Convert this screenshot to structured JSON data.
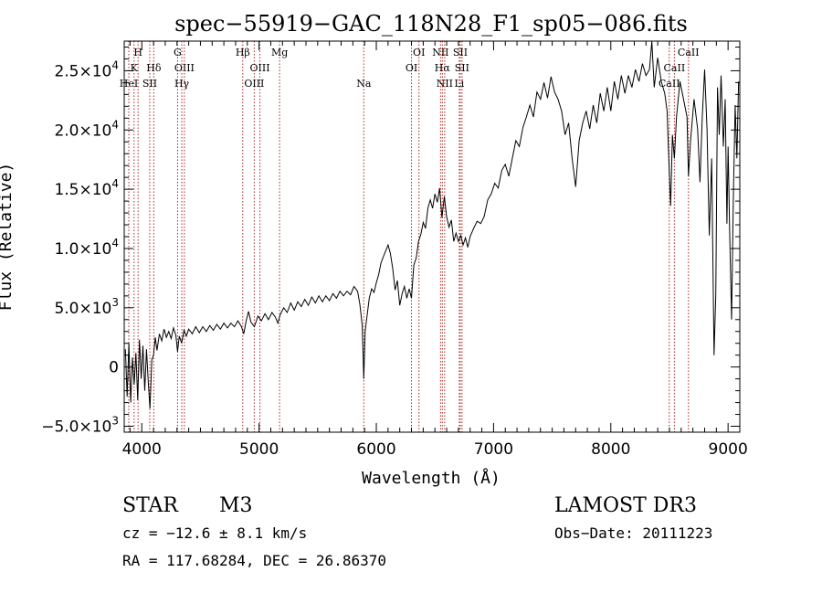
{
  "chart_data": {
    "type": "line",
    "title": "spec−55919−GAC_118N28_F1_sp05−086.fits",
    "xlabel": "Wavelength (Å)",
    "ylabel": "Flux (Relative)",
    "xlim": [
      3850,
      9100
    ],
    "ylim": [
      -5500,
      27500
    ],
    "x_ticks": [
      {
        "value": 4000,
        "label": "4000"
      },
      {
        "value": 5000,
        "label": "5000"
      },
      {
        "value": 6000,
        "label": "6000"
      },
      {
        "value": 7000,
        "label": "7000"
      },
      {
        "value": 8000,
        "label": "8000"
      },
      {
        "value": 9000,
        "label": "9000"
      }
    ],
    "y_ticks": [
      {
        "value": -5000,
        "mant": "−5.0×10",
        "exp": "3"
      },
      {
        "value": 0,
        "mant": "0",
        "exp": ""
      },
      {
        "value": 5000,
        "mant": "5.0×10",
        "exp": "3"
      },
      {
        "value": 10000,
        "mant": "1.0×10",
        "exp": "4"
      },
      {
        "value": 15000,
        "mant": "1.5×10",
        "exp": "4"
      },
      {
        "value": 20000,
        "mant": "2.0×10",
        "exp": "4"
      },
      {
        "value": 25000,
        "mant": "2.5×10",
        "exp": "4"
      }
    ],
    "line_color": "#000000",
    "marker_color": "#b22222",
    "spectral_lines": [
      {
        "label": "H",
        "wavelength": 3968,
        "row": 0
      },
      {
        "label": "K",
        "wavelength": 3934,
        "row": 1
      },
      {
        "label": "HeI",
        "wavelength": 3889,
        "row": 2
      },
      {
        "label": "Hδ",
        "wavelength": 4102,
        "row": 1
      },
      {
        "label": "SII",
        "wavelength": 4068,
        "row": 2
      },
      {
        "label": "G",
        "wavelength": 4305,
        "row": 0
      },
      {
        "label": "OIII",
        "wavelength": 4363,
        "row": 1
      },
      {
        "label": "Hγ",
        "wavelength": 4341,
        "row": 2
      },
      {
        "label": "Hβ",
        "wavelength": 4861,
        "row": 0
      },
      {
        "label": "OIII",
        "wavelength": 5007,
        "row": 1
      },
      {
        "label": "OIII",
        "wavelength": 4959,
        "row": 2
      },
      {
        "label": "Mg",
        "wavelength": 5175,
        "row": 0
      },
      {
        "label": "Na",
        "wavelength": 5893,
        "row": 2
      },
      {
        "label": "OI",
        "wavelength": 6364,
        "row": 0
      },
      {
        "label": "OI",
        "wavelength": 6300,
        "row": 1
      },
      {
        "label": "NII",
        "wavelength": 6548,
        "row": 0
      },
      {
        "label": "SII",
        "wavelength": 6716,
        "row": 0
      },
      {
        "label": "Hα",
        "wavelength": 6563,
        "row": 1
      },
      {
        "label": "SII",
        "wavelength": 6731,
        "row": 1
      },
      {
        "label": "NII",
        "wavelength": 6583,
        "row": 2
      },
      {
        "label": "Li",
        "wavelength": 6708,
        "row": 2
      },
      {
        "label": "CaII",
        "wavelength": 8662,
        "row": 0
      },
      {
        "label": "CaII",
        "wavelength": 8542,
        "row": 1
      },
      {
        "label": "CaII",
        "wavelength": 8498,
        "row": 2
      }
    ],
    "series": [
      {
        "name": "flux",
        "points": [
          [
            3860,
            1500
          ],
          [
            3875,
            -2500
          ],
          [
            3890,
            2000
          ],
          [
            3905,
            -3000
          ],
          [
            3920,
            800
          ],
          [
            3935,
            -1500
          ],
          [
            3950,
            1200
          ],
          [
            3965,
            -2800
          ],
          [
            3980,
            2300
          ],
          [
            3995,
            -1000
          ],
          [
            4010,
            1800
          ],
          [
            4025,
            -2000
          ],
          [
            4040,
            1500
          ],
          [
            4055,
            -1200
          ],
          [
            4070,
            -3500
          ],
          [
            4085,
            600
          ],
          [
            4100,
            1000
          ],
          [
            4115,
            2500
          ],
          [
            4130,
            1400
          ],
          [
            4150,
            2800
          ],
          [
            4170,
            2200
          ],
          [
            4190,
            3200
          ],
          [
            4210,
            2500
          ],
          [
            4230,
            3000
          ],
          [
            4250,
            2400
          ],
          [
            4270,
            3300
          ],
          [
            4290,
            2700
          ],
          [
            4305,
            1300
          ],
          [
            4320,
            2600
          ],
          [
            4340,
            2000
          ],
          [
            4360,
            3100
          ],
          [
            4380,
            2600
          ],
          [
            4400,
            3200
          ],
          [
            4430,
            2800
          ],
          [
            4460,
            3400
          ],
          [
            4490,
            2900
          ],
          [
            4520,
            3400
          ],
          [
            4550,
            3000
          ],
          [
            4580,
            3500
          ],
          [
            4610,
            3100
          ],
          [
            4640,
            3600
          ],
          [
            4670,
            3200
          ],
          [
            4700,
            3700
          ],
          [
            4730,
            3300
          ],
          [
            4760,
            3700
          ],
          [
            4790,
            3400
          ],
          [
            4820,
            3900
          ],
          [
            4850,
            3400
          ],
          [
            4870,
            2800
          ],
          [
            4890,
            3900
          ],
          [
            4910,
            4700
          ],
          [
            4930,
            3800
          ],
          [
            4960,
            3400
          ],
          [
            4990,
            4300
          ],
          [
            5020,
            3900
          ],
          [
            5050,
            4500
          ],
          [
            5080,
            4000
          ],
          [
            5110,
            4600
          ],
          [
            5140,
            4200
          ],
          [
            5160,
            3700
          ],
          [
            5180,
            4400
          ],
          [
            5210,
            5000
          ],
          [
            5240,
            4600
          ],
          [
            5270,
            5400
          ],
          [
            5300,
            4800
          ],
          [
            5330,
            5500
          ],
          [
            5360,
            5100
          ],
          [
            5390,
            5700
          ],
          [
            5420,
            5200
          ],
          [
            5450,
            5900
          ],
          [
            5480,
            5400
          ],
          [
            5510,
            6000
          ],
          [
            5540,
            5500
          ],
          [
            5570,
            6000
          ],
          [
            5600,
            5600
          ],
          [
            5630,
            6200
          ],
          [
            5660,
            5800
          ],
          [
            5690,
            6400
          ],
          [
            5720,
            6000
          ],
          [
            5750,
            6400
          ],
          [
            5780,
            6100
          ],
          [
            5810,
            6800
          ],
          [
            5840,
            6400
          ],
          [
            5860,
            5300
          ],
          [
            5880,
            3500
          ],
          [
            5893,
            -1000
          ],
          [
            5905,
            3000
          ],
          [
            5920,
            4200
          ],
          [
            5940,
            5800
          ],
          [
            5960,
            6600
          ],
          [
            5980,
            6300
          ],
          [
            6000,
            7100
          ],
          [
            6020,
            7800
          ],
          [
            6040,
            8800
          ],
          [
            6060,
            9300
          ],
          [
            6080,
            9800
          ],
          [
            6100,
            10300
          ],
          [
            6120,
            9600
          ],
          [
            6140,
            8300
          ],
          [
            6160,
            6500
          ],
          [
            6180,
            7300
          ],
          [
            6200,
            5200
          ],
          [
            6220,
            6200
          ],
          [
            6240,
            6800
          ],
          [
            6260,
            5800
          ],
          [
            6280,
            6600
          ],
          [
            6300,
            5800
          ],
          [
            6320,
            8600
          ],
          [
            6340,
            9200
          ],
          [
            6360,
            10600
          ],
          [
            6380,
            11200
          ],
          [
            6400,
            12200
          ],
          [
            6420,
            11700
          ],
          [
            6440,
            13400
          ],
          [
            6460,
            14100
          ],
          [
            6480,
            13400
          ],
          [
            6500,
            14600
          ],
          [
            6520,
            13900
          ],
          [
            6540,
            15100
          ],
          [
            6560,
            12600
          ],
          [
            6580,
            14400
          ],
          [
            6600,
            12700
          ],
          [
            6620,
            11800
          ],
          [
            6640,
            12400
          ],
          [
            6660,
            10600
          ],
          [
            6680,
            11300
          ],
          [
            6700,
            10600
          ],
          [
            6720,
            11100
          ],
          [
            6740,
            10300
          ],
          [
            6760,
            10900
          ],
          [
            6780,
            10100
          ],
          [
            6800,
            11000
          ],
          [
            6830,
            11700
          ],
          [
            6860,
            12300
          ],
          [
            6890,
            12100
          ],
          [
            6920,
            12700
          ],
          [
            6950,
            14100
          ],
          [
            6980,
            14600
          ],
          [
            7010,
            15500
          ],
          [
            7040,
            15100
          ],
          [
            7070,
            16600
          ],
          [
            7100,
            17100
          ],
          [
            7130,
            16100
          ],
          [
            7160,
            17600
          ],
          [
            7190,
            19100
          ],
          [
            7220,
            18600
          ],
          [
            7250,
            20200
          ],
          [
            7280,
            21100
          ],
          [
            7310,
            22100
          ],
          [
            7340,
            21100
          ],
          [
            7370,
            23200
          ],
          [
            7400,
            22600
          ],
          [
            7430,
            24000
          ],
          [
            7460,
            22700
          ],
          [
            7490,
            24500
          ],
          [
            7520,
            23200
          ],
          [
            7550,
            22600
          ],
          [
            7580,
            21600
          ],
          [
            7610,
            19600
          ],
          [
            7640,
            20600
          ],
          [
            7670,
            17600
          ],
          [
            7700,
            15200
          ],
          [
            7730,
            19100
          ],
          [
            7760,
            20600
          ],
          [
            7790,
            21600
          ],
          [
            7820,
            20100
          ],
          [
            7850,
            22100
          ],
          [
            7880,
            20600
          ],
          [
            7910,
            23100
          ],
          [
            7940,
            21600
          ],
          [
            7970,
            23600
          ],
          [
            8000,
            21600
          ],
          [
            8030,
            24100
          ],
          [
            8060,
            22600
          ],
          [
            8090,
            24600
          ],
          [
            8120,
            23100
          ],
          [
            8150,
            24600
          ],
          [
            8180,
            23600
          ],
          [
            8210,
            25100
          ],
          [
            8240,
            24100
          ],
          [
            8270,
            25600
          ],
          [
            8300,
            24600
          ],
          [
            8330,
            25100
          ],
          [
            8350,
            28000
          ],
          [
            8370,
            23600
          ],
          [
            8400,
            26100
          ],
          [
            8430,
            24100
          ],
          [
            8460,
            23100
          ],
          [
            8480,
            21600
          ],
          [
            8498,
            16600
          ],
          [
            8510,
            13600
          ],
          [
            8525,
            19600
          ],
          [
            8542,
            17600
          ],
          [
            8560,
            21100
          ],
          [
            8590,
            24100
          ],
          [
            8620,
            22600
          ],
          [
            8650,
            21100
          ],
          [
            8662,
            16100
          ],
          [
            8680,
            19100
          ],
          [
            8710,
            22600
          ],
          [
            8740,
            20100
          ],
          [
            8760,
            15600
          ],
          [
            8780,
            21100
          ],
          [
            8800,
            25100
          ],
          [
            8820,
            20100
          ],
          [
            8840,
            11100
          ],
          [
            8860,
            17600
          ],
          [
            8880,
            1000
          ],
          [
            8895,
            6000
          ],
          [
            8910,
            23600
          ],
          [
            8925,
            19600
          ],
          [
            8940,
            24600
          ],
          [
            8960,
            18600
          ],
          [
            8975,
            22600
          ],
          [
            8990,
            12100
          ],
          [
            9000,
            18600
          ],
          [
            9015,
            10600
          ],
          [
            9030,
            4000
          ],
          [
            9045,
            14100
          ],
          [
            9060,
            22100
          ],
          [
            9075,
            17600
          ],
          [
            9090,
            24100
          ]
        ]
      }
    ]
  },
  "footer": {
    "object_class": "STAR",
    "subclass": "M3",
    "redshift": "cz = −12.6 ± 8.1 km/s",
    "coords": "RA = 117.68284, DEC =  26.86370",
    "survey": "LAMOST DR3",
    "obs_date": "Obs−Date: 20111223"
  }
}
